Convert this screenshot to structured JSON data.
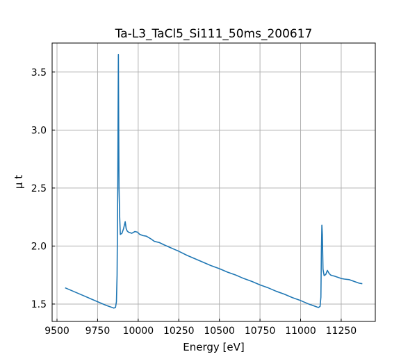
{
  "chart_data": {
    "type": "line",
    "title": "Ta-L3_TaCl5_Si111_50ms_200617",
    "xlabel": "Energy [eV]",
    "ylabel": "μ t",
    "xlim": [
      9470,
      11460
    ],
    "ylim": [
      1.35,
      3.75
    ],
    "x_ticks": [
      9500,
      9750,
      10000,
      10250,
      10500,
      10750,
      11000,
      11250
    ],
    "x_tick_labels": [
      "9500",
      "9750",
      "10000",
      "10250",
      "10500",
      "10750",
      "11000",
      "11250"
    ],
    "y_ticks": [
      1.5,
      2.0,
      2.5,
      3.0,
      3.5
    ],
    "y_tick_labels": [
      "1.5",
      "2.0",
      "2.5",
      "3.0",
      "3.5"
    ],
    "grid": true,
    "line_color": "#1f77b4",
    "series": [
      {
        "x": [
          9550,
          9600,
          9650,
          9700,
          9750,
          9800,
          9830,
          9850,
          9860,
          9866,
          9870,
          9874,
          9878,
          9880,
          9882,
          9886,
          9890,
          9900,
          9910,
          9920,
          9926,
          9932,
          9940,
          9960,
          9980,
          9995,
          10010,
          10030,
          10050,
          10080,
          10100,
          10130,
          10160,
          10200,
          10250,
          10300,
          10350,
          10400,
          10450,
          10500,
          10550,
          10600,
          10650,
          10700,
          10750,
          10800,
          10850,
          10900,
          10950,
          11000,
          11050,
          11090,
          11110,
          11120,
          11125,
          11128,
          11131,
          11134,
          11138,
          11145,
          11155,
          11165,
          11175,
          11185,
          11195,
          11210,
          11230,
          11250,
          11270,
          11300,
          11330,
          11360,
          11380
        ],
        "y": [
          1.64,
          1.61,
          1.58,
          1.55,
          1.52,
          1.49,
          1.475,
          1.465,
          1.47,
          1.52,
          1.75,
          2.5,
          3.65,
          3.0,
          2.5,
          2.25,
          2.1,
          2.11,
          2.15,
          2.21,
          2.15,
          2.13,
          2.12,
          2.11,
          2.125,
          2.12,
          2.1,
          2.09,
          2.085,
          2.06,
          2.04,
          2.03,
          2.01,
          1.985,
          1.955,
          1.92,
          1.89,
          1.86,
          1.83,
          1.805,
          1.775,
          1.75,
          1.72,
          1.695,
          1.665,
          1.64,
          1.61,
          1.585,
          1.555,
          1.53,
          1.5,
          1.48,
          1.47,
          1.48,
          1.56,
          1.95,
          2.18,
          2.1,
          1.8,
          1.745,
          1.755,
          1.79,
          1.765,
          1.75,
          1.745,
          1.74,
          1.73,
          1.72,
          1.715,
          1.71,
          1.695,
          1.68,
          1.675
        ]
      }
    ]
  }
}
